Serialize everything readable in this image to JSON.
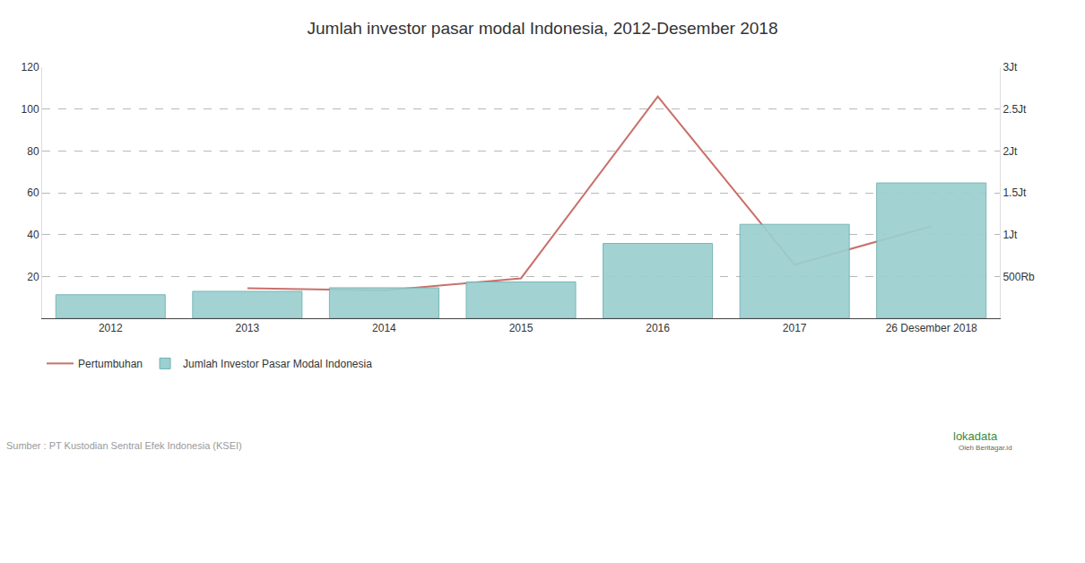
{
  "chart_data": {
    "type": "bar",
    "title": "Jumlah investor pasar modal Indonesia, 2012-Desember 2018",
    "categories": [
      "2012",
      "2013",
      "2014",
      "2015",
      "2016",
      "2017",
      "26 Desember 2018"
    ],
    "series": [
      {
        "name": "Pertumbuhan",
        "type": "line",
        "color": "#c9706b",
        "axis": "y",
        "values": [
          null,
          14.4,
          13.3,
          19.1,
          106,
          25.6,
          44
        ]
      },
      {
        "name": "Jumlah Investor Pasar Modal Indonesia",
        "type": "bar",
        "color": "#9ccfd0",
        "axis": "y2",
        "values": [
          281256,
          321804,
          364465,
          434107,
          894116,
          1122668,
          1617367
        ]
      }
    ],
    "ylim": [
      0,
      120
    ],
    "yticks": [
      20,
      40,
      60,
      80,
      100,
      120
    ],
    "y2lim": [
      0,
      3000000
    ],
    "y2ticks": [
      {
        "value": 500000,
        "label": "500Rb"
      },
      {
        "value": 1000000,
        "label": "1Jt"
      },
      {
        "value": 1500000,
        "label": "1.5Jt"
      },
      {
        "value": 2000000,
        "label": "2Jt"
      },
      {
        "value": 2500000,
        "label": "2.5Jt"
      },
      {
        "value": 3000000,
        "label": "3Jt"
      }
    ],
    "grid": true,
    "legend": "bottom left",
    "annotations": [
      "Sumber : PT Kustodian Sentral Efek Indonesia (KSEI)",
      "lokadata",
      "Oleh Beritagar.id"
    ]
  }
}
